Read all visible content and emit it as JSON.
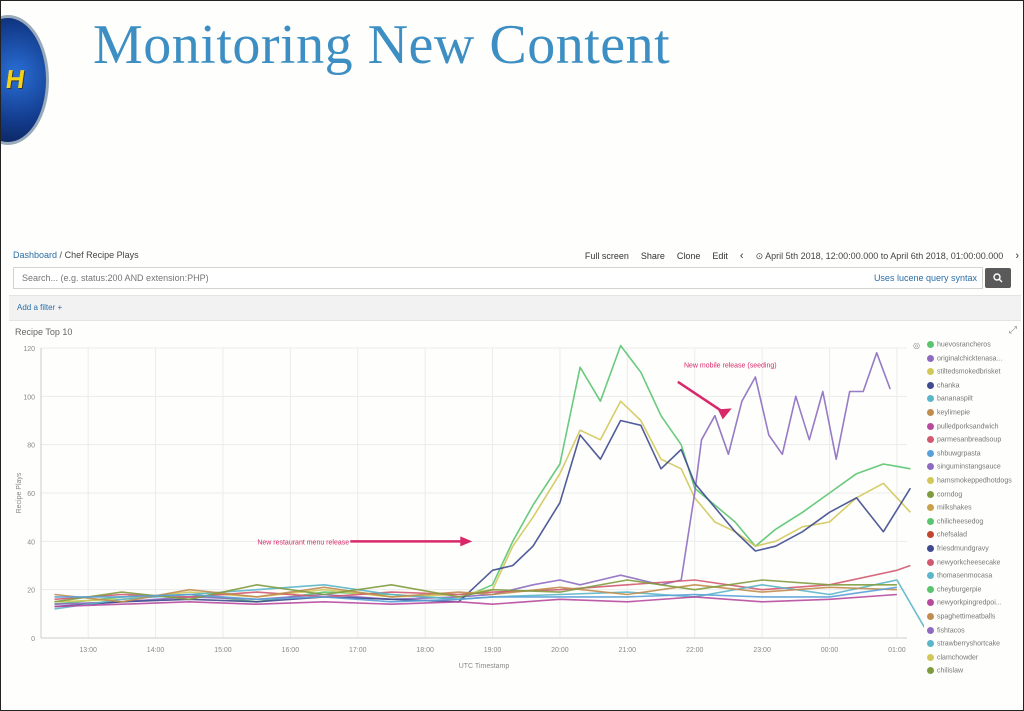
{
  "slide": {
    "title": "Monitoring New Content",
    "logo_text": "H"
  },
  "breadcrumb": {
    "dashboard": "Dashboard",
    "separator": "/",
    "current": "Chef Recipe Plays"
  },
  "toolbar": {
    "full_screen": "Full screen",
    "share": "Share",
    "clone": "Clone",
    "edit": "Edit",
    "prev_icon": "chevron-left-icon",
    "next_icon": "chevron-right-icon",
    "clock_icon": "clock-icon",
    "time_range": "April 5th 2018, 12:00:00.000 to April 6th 2018, 01:00:00.000"
  },
  "search": {
    "value": "",
    "placeholder": "Search... (e.g. status:200 AND extension:PHP)",
    "lucene_link": "Uses lucene query syntax",
    "button_icon": "search-icon"
  },
  "filters": {
    "add_filter": "Add a filter +"
  },
  "panel": {
    "title": "Recipe Top 10"
  },
  "colors": {
    "accent": "#2b6ea8",
    "annotation": "#d8286a",
    "title": "#3d8fc3"
  },
  "chart_data": {
    "type": "line",
    "ylabel": "Recipe Plays",
    "xlabel": "UTC Timestamp",
    "ylim": [
      0,
      120
    ],
    "yticks": [
      "0",
      "20",
      "40",
      "60",
      "80",
      "100",
      "120"
    ],
    "xticks": [
      "13:00",
      "14:00",
      "15:00",
      "16:00",
      "17:00",
      "18:00",
      "19:00",
      "20:00",
      "21:00",
      "22:00",
      "23:00",
      "00:00",
      "01:00"
    ],
    "grid": true,
    "legend_position": "right",
    "annotations": [
      {
        "text": "New restaurant menu release",
        "x": 18.7,
        "y": 40
      },
      {
        "text": "New mobile release (seeding)",
        "x": 21.9,
        "y": 112
      }
    ],
    "series": [
      {
        "color": "#5ac46f",
        "values": [
          [
            12.5,
            14
          ],
          [
            13.5,
            17
          ],
          [
            14.5,
            18
          ],
          [
            15.5,
            15
          ],
          [
            16.5,
            19
          ],
          [
            17.5,
            18
          ],
          [
            18.5,
            16
          ],
          [
            19,
            22
          ],
          [
            19.3,
            40
          ],
          [
            19.6,
            55
          ],
          [
            20,
            72
          ],
          [
            20.3,
            112
          ],
          [
            20.6,
            98
          ],
          [
            20.9,
            121
          ],
          [
            21.2,
            110
          ],
          [
            21.5,
            92
          ],
          [
            21.8,
            80
          ],
          [
            22,
            62
          ],
          [
            22.3,
            55
          ],
          [
            22.6,
            48
          ],
          [
            22.9,
            38
          ],
          [
            23.2,
            45
          ],
          [
            23.6,
            52
          ],
          [
            24,
            60
          ],
          [
            24.4,
            68
          ],
          [
            24.8,
            72
          ],
          [
            25.2,
            70
          ]
        ]
      },
      {
        "color": "#d2c85a",
        "values": [
          [
            12.5,
            15
          ],
          [
            13.5,
            16
          ],
          [
            14.5,
            19
          ],
          [
            15.5,
            17
          ],
          [
            16.5,
            20
          ],
          [
            17.5,
            17
          ],
          [
            18.5,
            18
          ],
          [
            19,
            20
          ],
          [
            19.3,
            38
          ],
          [
            19.6,
            50
          ],
          [
            20,
            68
          ],
          [
            20.3,
            86
          ],
          [
            20.6,
            82
          ],
          [
            20.9,
            98
          ],
          [
            21.2,
            90
          ],
          [
            21.5,
            74
          ],
          [
            21.8,
            70
          ],
          [
            22,
            58
          ],
          [
            22.3,
            48
          ],
          [
            22.6,
            44
          ],
          [
            22.9,
            38
          ],
          [
            23.2,
            40
          ],
          [
            23.6,
            46
          ],
          [
            24,
            48
          ],
          [
            24.4,
            58
          ],
          [
            24.8,
            64
          ],
          [
            25.2,
            52
          ]
        ]
      },
      {
        "color": "#8d6bc1",
        "values": [
          [
            12.5,
            14
          ],
          [
            13.5,
            15
          ],
          [
            14.5,
            17
          ],
          [
            15.5,
            16
          ],
          [
            16.5,
            18
          ],
          [
            17.5,
            16
          ],
          [
            18.5,
            17
          ],
          [
            19,
            18
          ],
          [
            19.3,
            20
          ],
          [
            19.6,
            22
          ],
          [
            20,
            24
          ],
          [
            20.3,
            22
          ],
          [
            20.6,
            24
          ],
          [
            20.9,
            26
          ],
          [
            21.2,
            24
          ],
          [
            21.5,
            22
          ],
          [
            21.8,
            24
          ],
          [
            22,
            60
          ],
          [
            22.1,
            82
          ],
          [
            22.3,
            92
          ],
          [
            22.5,
            76
          ],
          [
            22.7,
            98
          ],
          [
            22.9,
            108
          ],
          [
            23.1,
            84
          ],
          [
            23.3,
            76
          ],
          [
            23.5,
            100
          ],
          [
            23.7,
            82
          ],
          [
            23.9,
            102
          ],
          [
            24.1,
            74
          ],
          [
            24.3,
            102
          ],
          [
            24.5,
            102
          ],
          [
            24.7,
            118
          ],
          [
            24.9,
            103
          ]
        ]
      },
      {
        "color": "#3e4b8f",
        "values": [
          [
            12.5,
            13
          ],
          [
            13.5,
            15
          ],
          [
            14.5,
            16
          ],
          [
            15.5,
            15
          ],
          [
            16.5,
            17
          ],
          [
            17.5,
            16
          ],
          [
            18.5,
            15
          ],
          [
            19,
            28
          ],
          [
            19.3,
            30
          ],
          [
            19.6,
            38
          ],
          [
            20,
            56
          ],
          [
            20.3,
            84
          ],
          [
            20.6,
            74
          ],
          [
            20.9,
            90
          ],
          [
            21.2,
            88
          ],
          [
            21.5,
            70
          ],
          [
            21.8,
            78
          ],
          [
            22,
            64
          ],
          [
            22.3,
            54
          ],
          [
            22.6,
            44
          ],
          [
            22.9,
            36
          ],
          [
            23.2,
            38
          ],
          [
            23.6,
            44
          ],
          [
            24,
            52
          ],
          [
            24.4,
            58
          ],
          [
            24.8,
            44
          ],
          [
            25.2,
            62
          ]
        ]
      },
      {
        "color": "#d15a70",
        "values": [
          [
            12.5,
            16
          ],
          [
            13.5,
            18
          ],
          [
            14.5,
            17
          ],
          [
            15.5,
            19
          ],
          [
            16.5,
            17
          ],
          [
            17.5,
            19
          ],
          [
            18.5,
            18
          ],
          [
            19,
            19
          ],
          [
            20,
            20
          ],
          [
            21,
            22
          ],
          [
            22,
            24
          ],
          [
            23,
            20
          ],
          [
            24,
            22
          ],
          [
            25,
            28
          ],
          [
            25.2,
            30
          ]
        ]
      },
      {
        "color": "#5bb6c9",
        "values": [
          [
            12.5,
            12
          ],
          [
            13.5,
            16
          ],
          [
            14.5,
            18
          ],
          [
            15.5,
            20
          ],
          [
            16.5,
            22
          ],
          [
            17.5,
            18
          ],
          [
            18.5,
            16
          ],
          [
            19,
            17
          ],
          [
            20,
            18
          ],
          [
            21,
            19
          ],
          [
            22,
            17
          ],
          [
            23,
            22
          ],
          [
            24,
            18
          ],
          [
            25,
            24
          ],
          [
            25.5,
            0
          ]
        ]
      },
      {
        "color": "#c08d4e",
        "values": [
          [
            12.5,
            18
          ],
          [
            13.5,
            15
          ],
          [
            14.5,
            20
          ],
          [
            15.5,
            17
          ],
          [
            16.5,
            21
          ],
          [
            17.5,
            17
          ],
          [
            18.5,
            19
          ],
          [
            19,
            18
          ],
          [
            20,
            21
          ],
          [
            21,
            18
          ],
          [
            22,
            22
          ],
          [
            23,
            19
          ],
          [
            24,
            21
          ],
          [
            25,
            20
          ]
        ]
      },
      {
        "color": "#7f9b3e",
        "values": [
          [
            12.5,
            15
          ],
          [
            13.5,
            19
          ],
          [
            14.5,
            16
          ],
          [
            15.5,
            22
          ],
          [
            16.5,
            18
          ],
          [
            17.5,
            22
          ],
          [
            18.5,
            17
          ],
          [
            19,
            20
          ],
          [
            20,
            19
          ],
          [
            21,
            24
          ],
          [
            22,
            20
          ],
          [
            23,
            24
          ],
          [
            24,
            22
          ],
          [
            25,
            22
          ]
        ]
      },
      {
        "color": "#b84a9e",
        "values": [
          [
            12.5,
            13
          ],
          [
            13.5,
            14
          ],
          [
            14.5,
            15
          ],
          [
            15.5,
            14
          ],
          [
            16.5,
            15
          ],
          [
            17.5,
            14
          ],
          [
            18.5,
            15
          ],
          [
            19,
            14
          ],
          [
            20,
            16
          ],
          [
            21,
            15
          ],
          [
            22,
            17
          ],
          [
            23,
            15
          ],
          [
            24,
            16
          ],
          [
            25,
            18
          ]
        ]
      },
      {
        "color": "#5aa0d8",
        "values": [
          [
            12.5,
            17
          ],
          [
            13.5,
            17
          ],
          [
            14.5,
            18
          ],
          [
            15.5,
            16
          ],
          [
            16.5,
            17
          ],
          [
            17.5,
            15
          ],
          [
            18.5,
            16
          ],
          [
            19,
            17
          ],
          [
            20,
            17
          ],
          [
            21,
            17
          ],
          [
            22,
            18
          ],
          [
            23,
            17
          ],
          [
            24,
            17
          ],
          [
            25,
            21
          ]
        ]
      }
    ]
  },
  "legend": [
    {
      "label": "huevosrancheros",
      "color": "#5ac46f"
    },
    {
      "label": "originalchicktenasa...",
      "color": "#8d6bc1"
    },
    {
      "label": "stiltedsmokedbrisket",
      "color": "#d2c85a"
    },
    {
      "label": "chanka",
      "color": "#3e4b8f"
    },
    {
      "label": "bananaspilt",
      "color": "#5bb6c9"
    },
    {
      "label": "keylimepie",
      "color": "#c08d4e"
    },
    {
      "label": "pulledporksandwich",
      "color": "#b84a9e"
    },
    {
      "label": "parmesanbreadsoup",
      "color": "#d15a70"
    },
    {
      "label": "shbuwgrpasta",
      "color": "#5aa0d8"
    },
    {
      "label": "singuminstangsauce",
      "color": "#8d6bc1"
    },
    {
      "label": "hamsmokeppedhotdogs",
      "color": "#d2c85a"
    },
    {
      "label": "corndog",
      "color": "#7f9b3e"
    },
    {
      "label": "milkshakes",
      "color": "#c9a14a"
    },
    {
      "label": "chilicheesedog",
      "color": "#5ac46f"
    },
    {
      "label": "chefsalad",
      "color": "#c2452f"
    },
    {
      "label": "friesdmundgravy",
      "color": "#3e4b8f"
    },
    {
      "label": "newyorkcheesecake",
      "color": "#d15a70"
    },
    {
      "label": "thomasenmocasa",
      "color": "#5bb6c9"
    },
    {
      "label": "cheyburgerpie",
      "color": "#5ac46f"
    },
    {
      "label": "newyorkpingredpoi...",
      "color": "#b84a9e"
    },
    {
      "label": "spaghettimeatballs",
      "color": "#c08d4e"
    },
    {
      "label": "fishtacos",
      "color": "#8d6bc1"
    },
    {
      "label": "strawberryshortcake",
      "color": "#5bb6c9"
    },
    {
      "label": "clamchowder",
      "color": "#d2c85a"
    },
    {
      "label": "chilislaw",
      "color": "#7f9b3e"
    }
  ]
}
